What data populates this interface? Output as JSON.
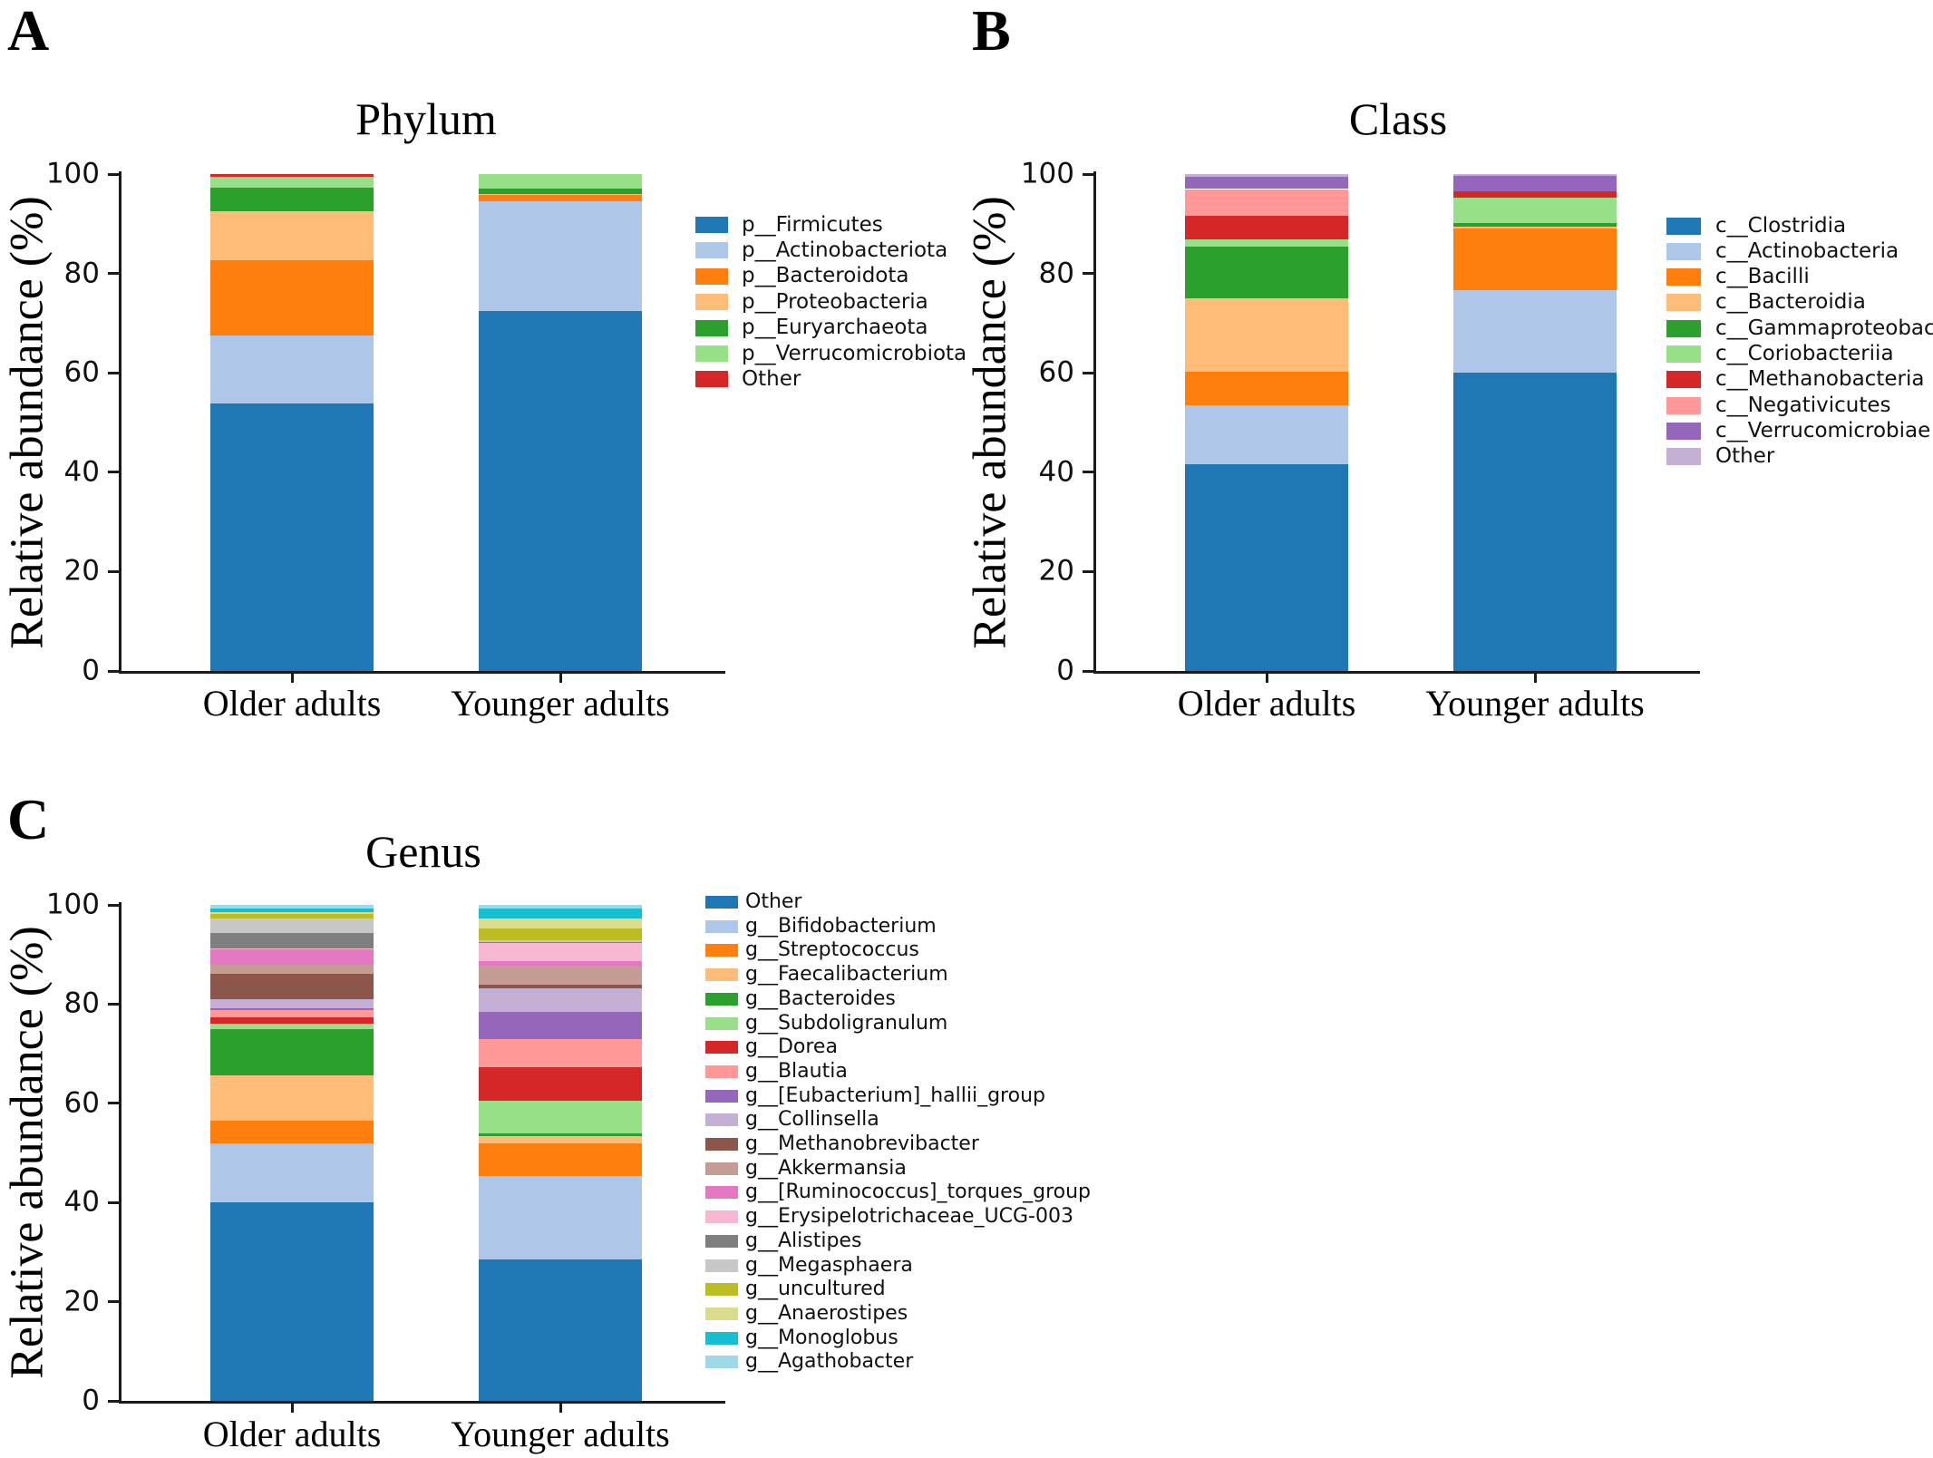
{
  "figure": {
    "background": "#ffffff",
    "axis_color": "#1a1a1a",
    "text_color": "#000000"
  },
  "chart_data": [
    {
      "type": "bar",
      "stacked": true,
      "panel_label": "A",
      "title": "Phylum",
      "ylabel": "Relative abundance (%)",
      "categories": [
        "Older adults",
        "Younger adults"
      ],
      "yticks": [
        0,
        20,
        40,
        60,
        80,
        100
      ],
      "ylim": [
        0,
        100
      ],
      "grid": false,
      "legend_position": "right",
      "series": [
        {
          "name": "p__Firmicutes",
          "color": "#1f77b4",
          "values": [
            53.8,
            72.4
          ]
        },
        {
          "name": "p__Actinobacteriota",
          "color": "#aec7e8",
          "values": [
            13.7,
            22.2
          ]
        },
        {
          "name": "p__Bacteroidota",
          "color": "#ff7f0e",
          "values": [
            15.2,
            1.2
          ]
        },
        {
          "name": "p__Proteobacteria",
          "color": "#ffbb78",
          "values": [
            9.8,
            0.2
          ]
        },
        {
          "name": "p__Euryarchaeota",
          "color": "#2ca02c",
          "values": [
            4.7,
            1.0
          ]
        },
        {
          "name": "p__Verrucomicrobiota",
          "color": "#98df8a",
          "values": [
            2.2,
            3.0
          ]
        },
        {
          "name": "Other",
          "color": "#d62728",
          "values": [
            0.6,
            0.0
          ]
        }
      ]
    },
    {
      "type": "bar",
      "stacked": true,
      "panel_label": "B",
      "title": "Class",
      "ylabel": "Relative abundance (%)",
      "categories": [
        "Older adults",
        "Younger adults"
      ],
      "yticks": [
        0,
        20,
        40,
        60,
        80,
        100
      ],
      "ylim": [
        0,
        100
      ],
      "grid": false,
      "legend_position": "right",
      "series": [
        {
          "name": "c__Clostridia",
          "color": "#1f77b4",
          "values": [
            41.7,
            60.0
          ]
        },
        {
          "name": "c__Actinobacteria",
          "color": "#aec7e8",
          "values": [
            11.8,
            16.7
          ]
        },
        {
          "name": "c__Bacilli",
          "color": "#ff7f0e",
          "values": [
            6.7,
            12.4
          ]
        },
        {
          "name": "c__Bacteroidia",
          "color": "#ffbb78",
          "values": [
            14.9,
            0.4
          ]
        },
        {
          "name": "c__Gammaproteobacteria",
          "color": "#2ca02c",
          "values": [
            10.3,
            0.6
          ]
        },
        {
          "name": "c__Coriobacteriia",
          "color": "#98df8a",
          "values": [
            1.5,
            5.2
          ]
        },
        {
          "name": "c__Methanobacteria",
          "color": "#d62728",
          "values": [
            4.8,
            1.2
          ]
        },
        {
          "name": "c__Negativicutes",
          "color": "#ff9896",
          "values": [
            5.3,
            0.0
          ]
        },
        {
          "name": "c__Verrucomicrobiae",
          "color": "#9467bd",
          "values": [
            2.4,
            3.2
          ]
        },
        {
          "name": "Other",
          "color": "#c5b0d5",
          "values": [
            0.6,
            0.3
          ]
        }
      ]
    },
    {
      "type": "bar",
      "stacked": true,
      "panel_label": "C",
      "title": "Genus",
      "ylabel": "Relative abundance (%)",
      "categories": [
        "Older adults",
        "Younger adults"
      ],
      "yticks": [
        0,
        20,
        40,
        60,
        80,
        100
      ],
      "ylim": [
        0,
        100
      ],
      "grid": false,
      "legend_position": "right",
      "series": [
        {
          "name": "Other",
          "color": "#1f77b4",
          "values": [
            40.0,
            28.5
          ]
        },
        {
          "name": "g__Bifidobacterium",
          "color": "#aec7e8",
          "values": [
            12.0,
            16.8
          ]
        },
        {
          "name": "g__Streptococcus",
          "color": "#ff7f0e",
          "values": [
            4.5,
            6.6
          ]
        },
        {
          "name": "g__Faecalibacterium",
          "color": "#ffbb78",
          "values": [
            9.2,
            1.4
          ]
        },
        {
          "name": "g__Bacteroides",
          "color": "#2ca02c",
          "values": [
            9.2,
            0.7
          ]
        },
        {
          "name": "g__Subdoligranulum",
          "color": "#98df8a",
          "values": [
            1.2,
            6.6
          ]
        },
        {
          "name": "g__Dorea",
          "color": "#d62728",
          "values": [
            1.3,
            6.6
          ]
        },
        {
          "name": "g__Blautia",
          "color": "#ff9896",
          "values": [
            1.4,
            5.7
          ]
        },
        {
          "name": "g__[Eubacterium]_hallii_group",
          "color": "#9467bd",
          "values": [
            0.4,
            5.6
          ]
        },
        {
          "name": "g__Collinsella",
          "color": "#c5b0d5",
          "values": [
            1.8,
            4.6
          ]
        },
        {
          "name": "g__Methanobrevibacter",
          "color": "#8c564b",
          "values": [
            5.2,
            0.8
          ]
        },
        {
          "name": "g__Akkermansia",
          "color": "#c49c94",
          "values": [
            1.8,
            3.8
          ]
        },
        {
          "name": "g__[Ruminococcus]_torques_group",
          "color": "#e377c2",
          "values": [
            3.0,
            0.9
          ]
        },
        {
          "name": "g__Erysipelotrichaceae_UCG-003",
          "color": "#f7b6d2",
          "values": [
            0.3,
            3.8
          ]
        },
        {
          "name": "g__Alistipes",
          "color": "#7f7f7f",
          "values": [
            3.0,
            0.2
          ]
        },
        {
          "name": "g__Megasphaera",
          "color": "#c7c7c7",
          "values": [
            3.0,
            0.2
          ]
        },
        {
          "name": "g__uncultured",
          "color": "#bcbd22",
          "values": [
            0.9,
            2.4
          ]
        },
        {
          "name": "g__Anaerostipes",
          "color": "#dbdb8d",
          "values": [
            0.4,
            2.1
          ]
        },
        {
          "name": "g__Monoglobus",
          "color": "#17becf",
          "values": [
            0.7,
            2.0
          ]
        },
        {
          "name": "g__Agathobacter",
          "color": "#9edae5",
          "values": [
            0.7,
            0.7
          ]
        }
      ]
    }
  ]
}
